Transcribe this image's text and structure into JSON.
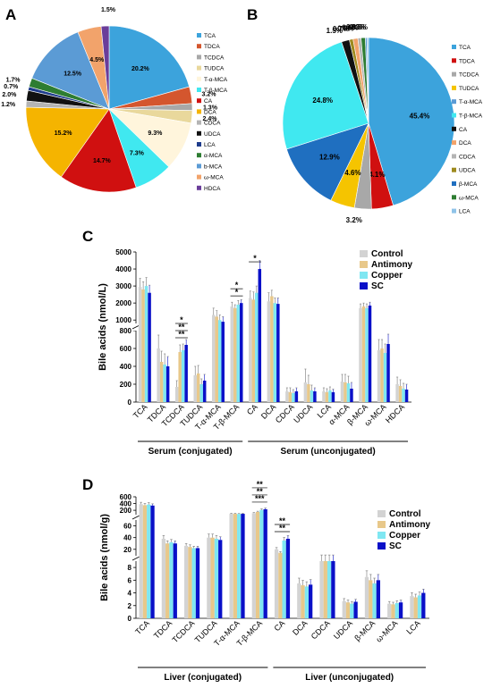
{
  "panel_labels": {
    "a": "A",
    "b": "B",
    "c": "C",
    "d": "D"
  },
  "chart_data": [
    {
      "id": "A",
      "type": "pie",
      "start_label": "1.5%",
      "slices": [
        {
          "label": "TCA",
          "value": 20.2,
          "color": "#3CA3DC",
          "text": "20.2%"
        },
        {
          "label": "TDCA",
          "value": 3.2,
          "color": "#D4562E",
          "text": "3.2%"
        },
        {
          "label": "TCDCA",
          "value": 1.3,
          "color": "#A8A8A8",
          "text": "1.3%"
        },
        {
          "label": "TUDCA",
          "value": 2.4,
          "color": "#E9D89C",
          "text": "2.4%"
        },
        {
          "label": "T-α-MCA",
          "value": 9.3,
          "color": "#FFF5DC",
          "text": "9.3%"
        },
        {
          "label": "T-β-MCA",
          "value": 7.3,
          "color": "#40E8F0",
          "text": "7.3%"
        },
        {
          "label": "CA",
          "value": 14.7,
          "color": "#D01010",
          "text": "14.7%"
        },
        {
          "label": "DCA",
          "value": 15.2,
          "color": "#F5B400",
          "text": "15.2%"
        },
        {
          "label": "CDCA",
          "value": 1.2,
          "color": "#B4B4B4",
          "text": "1.2%"
        },
        {
          "label": "UDCA",
          "value": 2.0,
          "color": "#111111",
          "text": "2.0%"
        },
        {
          "label": "LCA",
          "value": 0.7,
          "color": "#1E3C8C",
          "text": "0.7%"
        },
        {
          "label": "α-MCA",
          "value": 1.7,
          "color": "#2E7D32",
          "text": "1.7%"
        },
        {
          "label": "b-MCA",
          "value": 12.5,
          "color": "#5B9BD5",
          "text": "12.5%"
        },
        {
          "label": "ω-MCA",
          "value": 4.5,
          "color": "#F2A36B",
          "text": "4.5%"
        },
        {
          "label": "HDCA",
          "value": 1.5,
          "color": "#6A3D9A",
          "text": ""
        }
      ],
      "legend": [
        "TCA",
        "TDCA",
        "TCDCA",
        "TUDCA",
        "T-α-MCA",
        "T-β-MCA",
        "CA",
        "DCA",
        "CDCA",
        "UDCA",
        "LCA",
        "α-MCA",
        "b-MCA",
        "ω-MCA",
        "HDCA"
      ]
    },
    {
      "id": "B",
      "type": "pie",
      "slices": [
        {
          "label": "TCA",
          "value": 45.4,
          "color": "#3CA3DC",
          "text": "45.4%"
        },
        {
          "label": "TDCA",
          "value": 4.1,
          "color": "#D01010",
          "text": "4.1%"
        },
        {
          "label": "TCDCA",
          "value": 3.2,
          "color": "#A8A8A8",
          "text": "3.2%"
        },
        {
          "label": "TUDCA",
          "value": 4.6,
          "color": "#F5C400",
          "text": "4.6%"
        },
        {
          "label": "β-MCA",
          "value": 12.9,
          "color": "#1F6FC0",
          "text": "12.9%"
        },
        {
          "label": "T-β-MCA",
          "value": 24.8,
          "color": "#40E8F0",
          "text": "24.8%"
        },
        {
          "label": "CA",
          "value": 1.5,
          "color": "#111111",
          "text": "1.5%"
        },
        {
          "label": "UDCA",
          "value": 0.7,
          "color": "#9E8A1E",
          "text": "0.7%"
        },
        {
          "label": "DCA",
          "value": 0.9,
          "color": "#F2A36B",
          "text": "0.9%"
        },
        {
          "label": "CDCA",
          "value": 0.6,
          "color": "#B4B4B4",
          "text": "0.6%"
        },
        {
          "label": "ω-MCA",
          "value": 0.8,
          "color": "#2E7D32",
          "text": "0.8%"
        },
        {
          "label": "T-α-MCA",
          "value": 0.3,
          "color": "#5B9BD5",
          "text": "0.3%"
        },
        {
          "label": "LCA",
          "value": 0.3,
          "color": "#8FC3E8",
          "text": "0.3%"
        }
      ],
      "legend": [
        "TCA",
        "TDCA",
        "TCDCA",
        "TUDCA",
        "T-α-MCA",
        "T-β-MCA",
        "CA",
        "DCA",
        "CDCA",
        "UDCA",
        "β-MCA",
        "ω-MCA",
        "LCA"
      ]
    },
    {
      "id": "C",
      "type": "bar",
      "ylabel": "Bile acids (nmol/L)",
      "upper_ticks": [
        1000,
        2000,
        3000,
        4000,
        5000
      ],
      "lower_ticks": [
        0,
        200,
        400,
        600,
        800
      ],
      "groups": [
        "Control",
        "Antimony",
        "Copper",
        "SC"
      ],
      "group_colors": [
        "#D3D3D3",
        "#E8C88A",
        "#7FE7F2",
        "#0A10C8"
      ],
      "categories": [
        "TCA",
        "TDCA",
        "TCDCA",
        "TUDCA",
        "T-α-MCA",
        "T-β-MCA",
        "CA",
        "DCA",
        "CDCA",
        "UDCA",
        "LCA",
        "α-MCA",
        "β-MCA",
        "ω-MCA",
        "HDCA"
      ],
      "series": [
        {
          "name": "Control",
          "values": [
            2950,
            600,
            170,
            300,
            1300,
            1800,
            2300,
            2100,
            120,
            220,
            120,
            230,
            1700,
            580,
            200
          ]
        },
        {
          "name": "Antimony",
          "values": [
            2800,
            450,
            560,
            320,
            1200,
            1700,
            2200,
            2400,
            110,
            200,
            110,
            220,
            1800,
            600,
            180
          ]
        },
        {
          "name": "Copper",
          "values": [
            3000,
            420,
            580,
            200,
            1000,
            1900,
            2600,
            2000,
            100,
            130,
            130,
            210,
            1700,
            550,
            150
          ]
        },
        {
          "name": "SC",
          "values": [
            2600,
            400,
            640,
            240,
            900,
            2000,
            4000,
            1950,
            120,
            120,
            110,
            150,
            1850,
            650,
            140
          ]
        }
      ],
      "errors": [
        [
          500,
          150,
          70,
          100,
          400,
          250,
          400,
          500,
          40,
          150,
          40,
          80,
          250,
          120,
          80
        ],
        [
          450,
          120,
          80,
          90,
          350,
          200,
          450,
          350,
          50,
          100,
          40,
          90,
          200,
          100,
          70
        ],
        [
          500,
          120,
          70,
          60,
          300,
          250,
          400,
          300,
          40,
          60,
          40,
          80,
          250,
          100,
          60
        ],
        [
          450,
          110,
          60,
          70,
          300,
          200,
          500,
          350,
          40,
          40,
          35,
          70,
          200,
          110,
          60
        ]
      ],
      "significance": [
        {
          "category": "TCDCA",
          "marks": [
            "**",
            "**",
            "*"
          ]
        },
        {
          "category": "T-β-MCA",
          "marks": [
            "*",
            "*"
          ]
        },
        {
          "category": "CA",
          "marks": [
            "*"
          ]
        }
      ],
      "brackets": [
        {
          "label": "Serum (conjugated)",
          "from": 0,
          "to": 5
        },
        {
          "label": "Serum (unconjugated)",
          "from": 6,
          "to": 14
        }
      ]
    },
    {
      "id": "D",
      "type": "bar",
      "ylabel": "Bile acids (nmol/g)",
      "top_ticks": [
        200,
        400,
        600
      ],
      "mid_ticks": [
        20,
        40,
        60
      ],
      "bottom_ticks": [
        0,
        2,
        4,
        6,
        8
      ],
      "groups": [
        "Control",
        "Antimony",
        "Copper",
        "SC"
      ],
      "group_colors": [
        "#D3D3D3",
        "#E8C88A",
        "#7FE7F2",
        "#0A10C8"
      ],
      "categories": [
        "TCA",
        "TDCA",
        "TCDCA",
        "TUDCA",
        "T-α-MCA",
        "T-β-MCA",
        "CA",
        "DCA",
        "CDCA",
        "UDCA",
        "β-MCA",
        "ω-MCA",
        "LCA"
      ],
      "series": [
        {
          "name": "Control",
          "values": [
            380,
            38,
            26,
            40,
            95,
            115,
            20,
            5.5,
            9.0,
            2.7,
            6.5,
            2.3,
            3.5
          ]
        },
        {
          "name": "Antimony",
          "values": [
            350,
            30,
            24,
            40,
            95,
            150,
            14,
            5.2,
            9.0,
            2.5,
            6.0,
            2.2,
            3.3
          ]
        },
        {
          "name": "Copper",
          "values": [
            370,
            32,
            22,
            38,
            90,
            210,
            35,
            5.0,
            9.0,
            2.3,
            5.5,
            2.4,
            3.6
          ]
        },
        {
          "name": "SC",
          "values": [
            340,
            30,
            22,
            36,
            95,
            230,
            38,
            5.3,
            9.0,
            2.6,
            6.0,
            2.5,
            4.0
          ]
        }
      ],
      "significance": [
        {
          "category": "T-β-MCA",
          "marks": [
            "***",
            "**",
            "**"
          ]
        },
        {
          "category": "CA",
          "marks": [
            "**",
            "**"
          ]
        }
      ],
      "brackets": [
        {
          "label": "Liver (conjugated)",
          "from": 0,
          "to": 5
        },
        {
          "label": "Liver (unconjugated)",
          "from": 6,
          "to": 12
        }
      ]
    }
  ]
}
